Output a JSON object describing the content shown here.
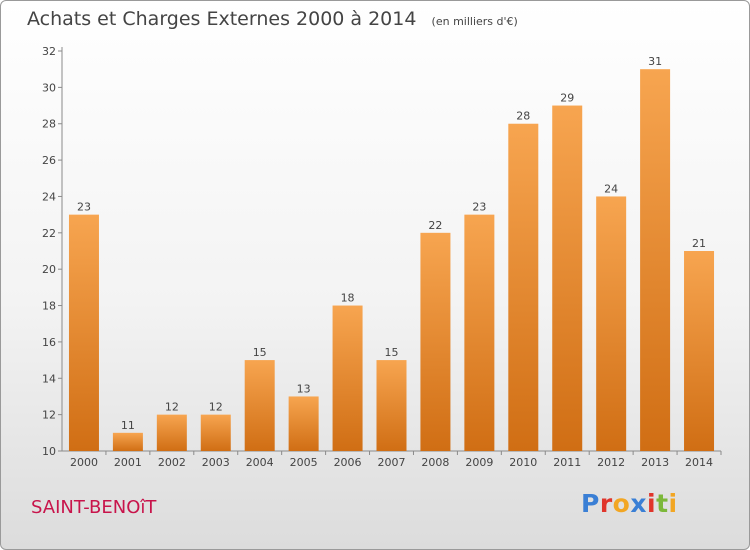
{
  "header": {
    "title": "Achats et Charges Externes 2000 à 2014",
    "unit": "(en milliers d'€)"
  },
  "footer": {
    "city": "SAINT-BENOîT",
    "logo_text": "Proxiti",
    "logo_colors": [
      "#3a7fd5",
      "#e0352b",
      "#f2a623",
      "#3a7fd5",
      "#e0352b",
      "#7cb83a",
      "#f2a623"
    ]
  },
  "chart_data": {
    "type": "bar",
    "categories": [
      "2000",
      "2001",
      "2002",
      "2003",
      "2004",
      "2005",
      "2006",
      "2007",
      "2008",
      "2009",
      "2010",
      "2011",
      "2012",
      "2013",
      "2014"
    ],
    "values": [
      23,
      11,
      12,
      12,
      15,
      13,
      18,
      15,
      22,
      23,
      28,
      29,
      24,
      31,
      21
    ],
    "yticks": [
      10,
      12,
      14,
      16,
      18,
      20,
      22,
      24,
      26,
      28,
      30,
      32
    ],
    "ylim": [
      10,
      32
    ],
    "grid": false,
    "bar_color_top": "#f7a550",
    "bar_color_bottom": "#d06e14"
  }
}
